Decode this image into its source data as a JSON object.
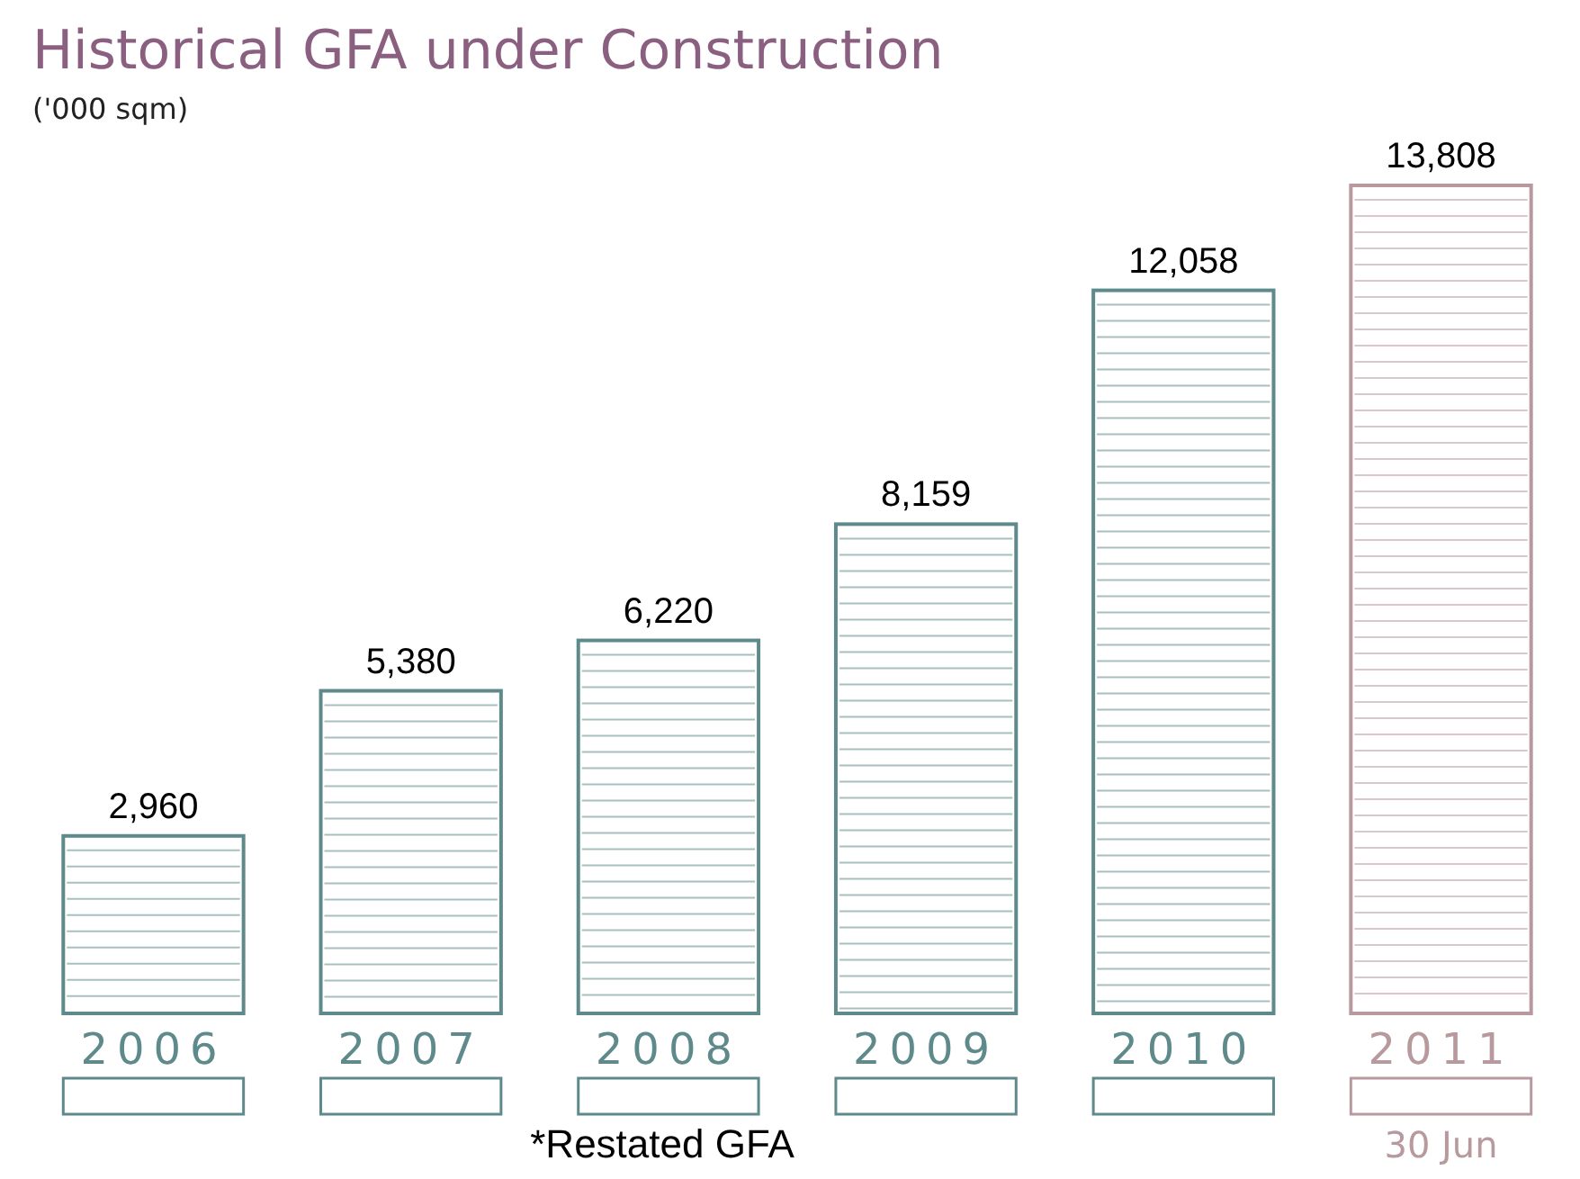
{
  "chart_data": {
    "type": "bar",
    "title": "Historical GFA under Construction",
    "subtitle": "('000 sqm)",
    "categories": [
      "2006",
      "2007",
      "2008",
      "2009",
      "2010",
      "2011\n30 Jun"
    ],
    "values": [
      2960,
      5380,
      6220,
      8159,
      12058,
      13808
    ],
    "colors": [
      "#5f8a8b",
      "#5f8a8b",
      "#5f8a8b",
      "#5f8a8b",
      "#5f8a8b",
      "#b89a9e"
    ],
    "value_labels": [
      "2,960",
      "5,380",
      "6,220",
      "8,159",
      "12,058",
      "13,808"
    ],
    "annotations": [
      "*Restated GFA"
    ]
  }
}
